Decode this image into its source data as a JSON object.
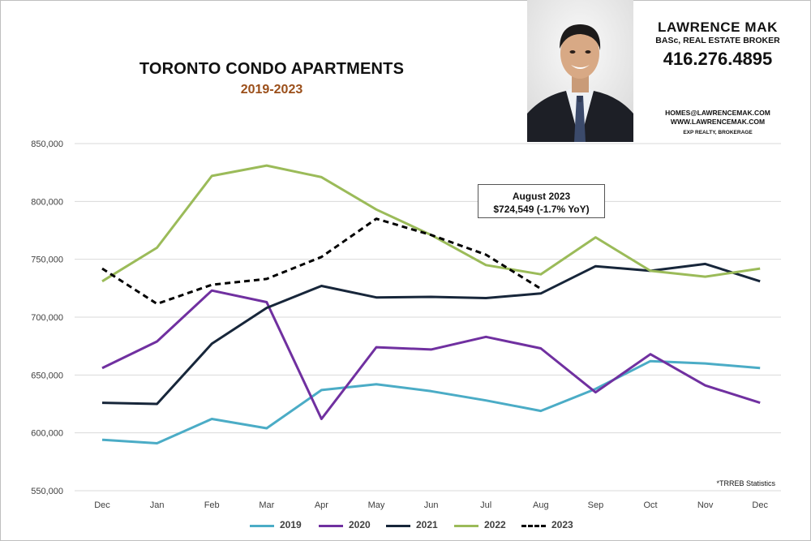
{
  "header": {
    "title": "TORONTO CONDO APARTMENTS",
    "subtitle": "2019-2023"
  },
  "agent": {
    "name": "LAWRENCE MAK",
    "role": "BASc, REAL ESTATE BROKER",
    "phone": "416.276.4895",
    "email": "HOMES@LAWRENCEMAK.COM",
    "website": "WWW.LAWRENCEMAK.COM",
    "brokerage": "EXP REALTY, BROKERAGE"
  },
  "annotation": {
    "line1": "August  2023",
    "line2": "$724,549  (-1.7%  YoY)"
  },
  "source_note": "*TRREB Statistics",
  "chart_data": {
    "type": "line",
    "title": "TORONTO CONDO APARTMENTS",
    "subtitle": "2019-2023",
    "xlabel": "",
    "ylabel": "",
    "categories": [
      "Dec",
      "Jan",
      "Feb",
      "Mar",
      "Apr",
      "May",
      "Jun",
      "Jul",
      "Aug",
      "Sep",
      "Oct",
      "Nov",
      "Dec"
    ],
    "ylim": [
      550000,
      850000
    ],
    "yticks": [
      550000,
      600000,
      650000,
      700000,
      750000,
      800000,
      850000
    ],
    "ytick_labels": [
      "550,000",
      "600,000",
      "650,000",
      "700,000",
      "750,000",
      "800,000",
      "850,000"
    ],
    "grid": true,
    "legend_position": "bottom",
    "series": [
      {
        "name": "2019",
        "color": "#4bacc6",
        "dashed": false,
        "values": [
          594000,
          591000,
          612000,
          604000,
          637000,
          642000,
          636000,
          628000,
          619000,
          638000,
          662000,
          660000,
          656000
        ]
      },
      {
        "name": "2020",
        "color": "#7030a0",
        "dashed": false,
        "values": [
          656000,
          679000,
          723000,
          713000,
          612000,
          674000,
          672000,
          683000,
          673000,
          635000,
          668000,
          641000,
          626000
        ]
      },
      {
        "name": "2021",
        "color": "#17263a",
        "dashed": false,
        "values": [
          626000,
          625000,
          677000,
          708000,
          727000,
          717000,
          717500,
          716500,
          720500,
          744000,
          740000,
          746000,
          731000
        ]
      },
      {
        "name": "2022",
        "color": "#9bbb59",
        "dashed": false,
        "values": [
          731000,
          760000,
          822000,
          831000,
          821000,
          793000,
          771000,
          745000,
          737000,
          769000,
          740000,
          735000,
          742000
        ]
      },
      {
        "name": "2023",
        "color": "#000000",
        "dashed": true,
        "values": [
          742000,
          711500,
          728000,
          733000,
          752000,
          785000,
          771000,
          754000,
          724549,
          null,
          null,
          null,
          null
        ]
      }
    ],
    "annotations": [
      "August  2023",
      "$724,549  (-1.7%  YoY)"
    ]
  }
}
